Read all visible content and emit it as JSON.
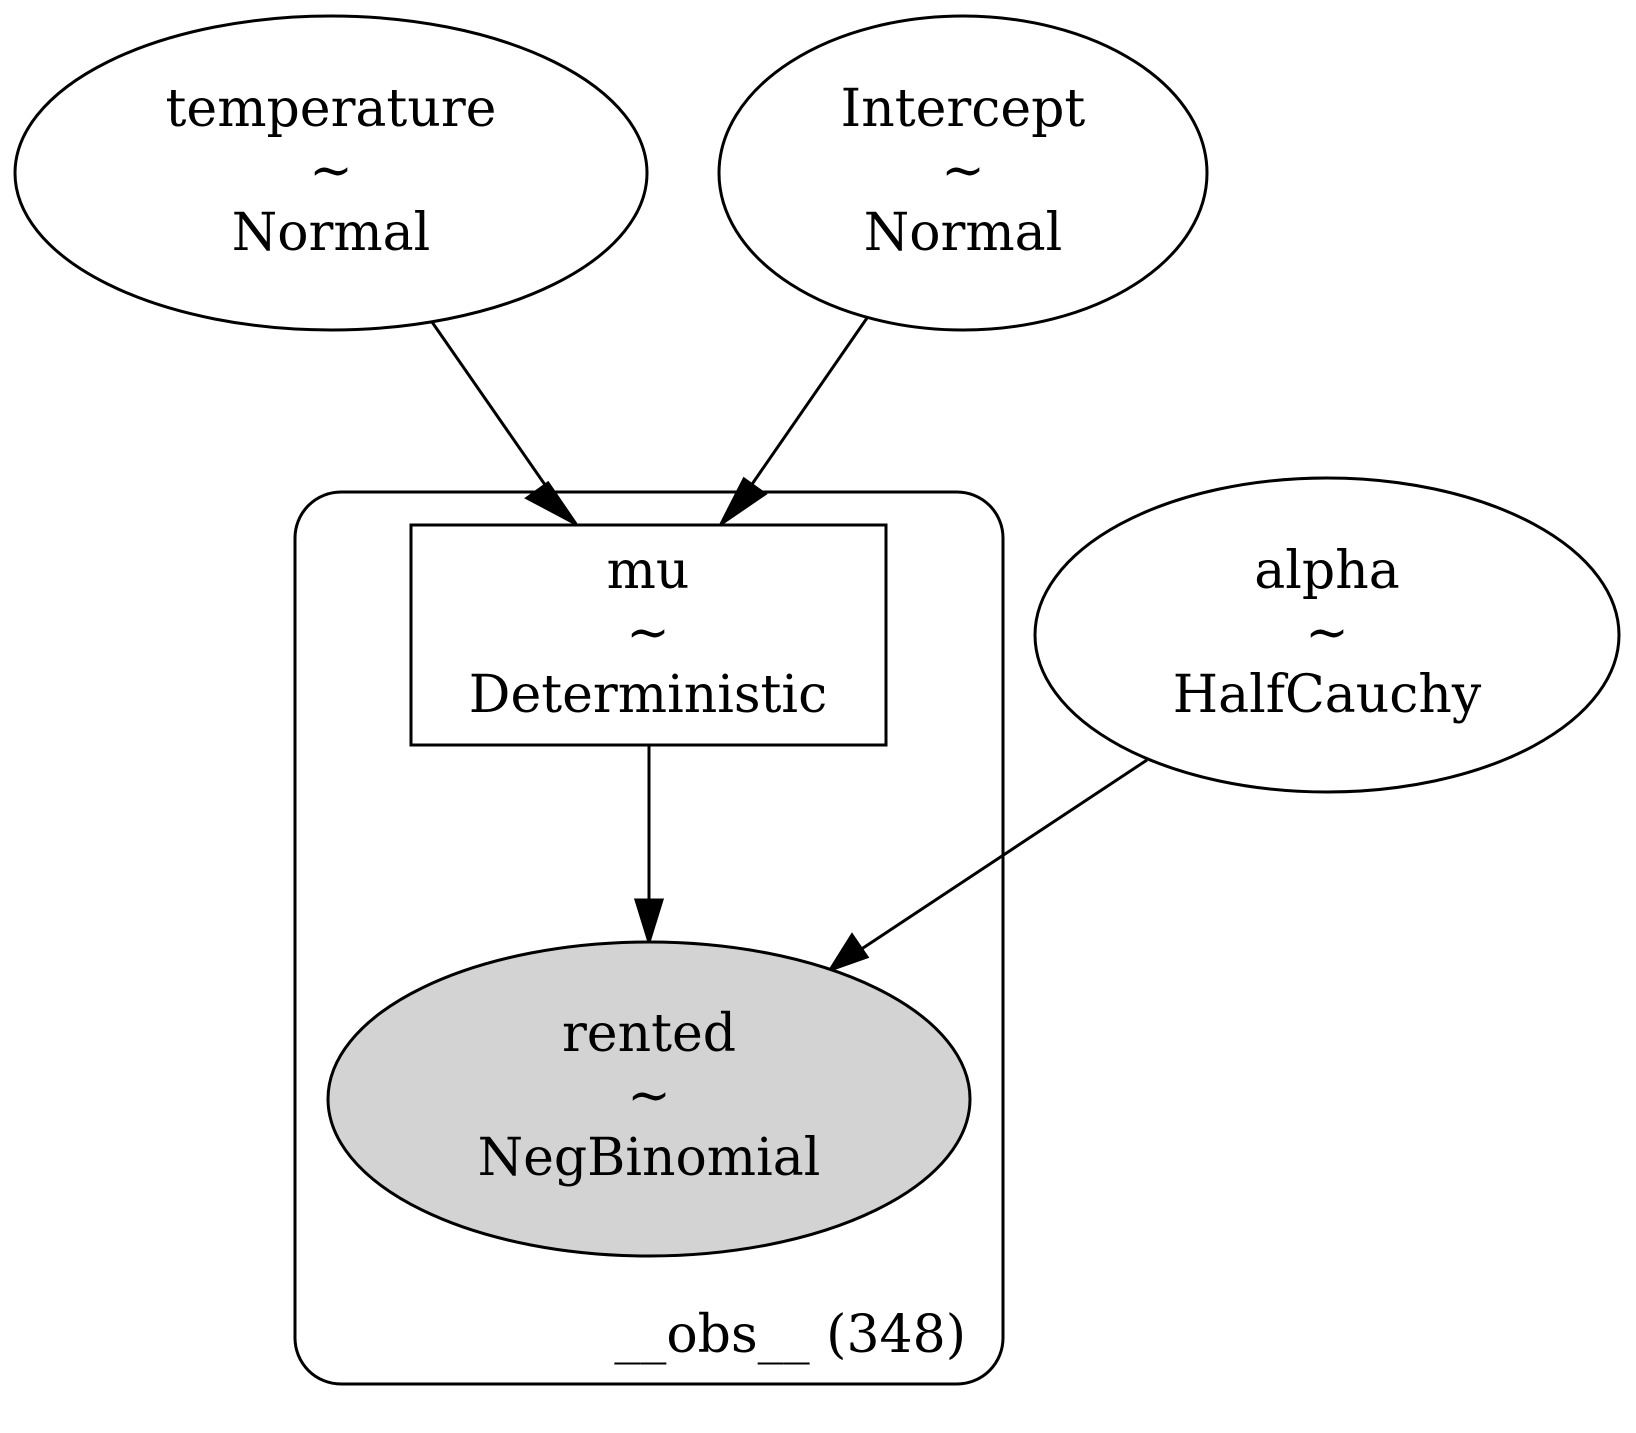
{
  "diagram": {
    "type": "graphical-model",
    "colors": {
      "stroke": "#000000",
      "observed_fill": "#d3d3d3",
      "background": "#ffffff"
    },
    "nodes": {
      "temperature": {
        "name": "temperature",
        "tilde": "~",
        "distribution": "Normal",
        "shape": "ellipse",
        "observed": false
      },
      "intercept": {
        "name": "Intercept",
        "tilde": "~",
        "distribution": "Normal",
        "shape": "ellipse",
        "observed": false
      },
      "mu": {
        "name": "mu",
        "tilde": "~",
        "distribution": "Deterministic",
        "shape": "box",
        "observed": false
      },
      "alpha": {
        "name": "alpha",
        "tilde": "~",
        "distribution": "HalfCauchy",
        "shape": "ellipse",
        "observed": false
      },
      "rented": {
        "name": "rented",
        "tilde": "~",
        "distribution": "NegBinomial",
        "shape": "ellipse",
        "observed": true
      }
    },
    "plate": {
      "label": "__obs__ (348)"
    },
    "edges": [
      {
        "from": "temperature",
        "to": "mu"
      },
      {
        "from": "Intercept",
        "to": "mu"
      },
      {
        "from": "mu",
        "to": "rented"
      },
      {
        "from": "alpha",
        "to": "rented"
      }
    ]
  }
}
